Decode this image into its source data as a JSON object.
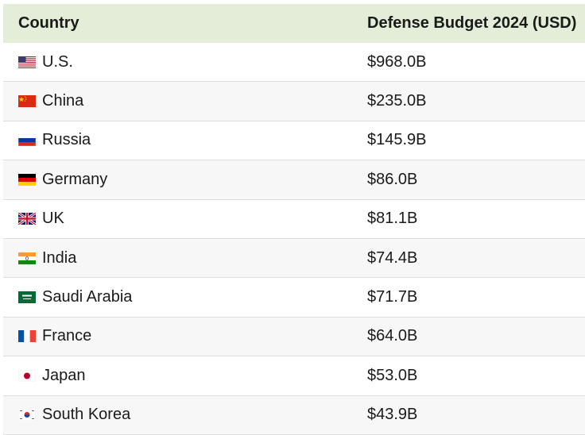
{
  "table": {
    "headers": {
      "country": "Country",
      "budget": "Defense Budget 2024 (USD)"
    },
    "rows": [
      {
        "country": "U.S.",
        "budget": "$968.0B",
        "flag_icon": "us-flag-icon"
      },
      {
        "country": "China",
        "budget": "$235.0B",
        "flag_icon": "china-flag-icon"
      },
      {
        "country": "Russia",
        "budget": "$145.9B",
        "flag_icon": "russia-flag-icon"
      },
      {
        "country": "Germany",
        "budget": "$86.0B",
        "flag_icon": "germany-flag-icon"
      },
      {
        "country": "UK",
        "budget": "$81.1B",
        "flag_icon": "uk-flag-icon"
      },
      {
        "country": "India",
        "budget": "$74.4B",
        "flag_icon": "india-flag-icon"
      },
      {
        "country": "Saudi Arabia",
        "budget": "$71.7B",
        "flag_icon": "saudi-arabia-flag-icon"
      },
      {
        "country": "France",
        "budget": "$64.0B",
        "flag_icon": "france-flag-icon"
      },
      {
        "country": "Japan",
        "budget": "$53.0B",
        "flag_icon": "japan-flag-icon"
      },
      {
        "country": "South Korea",
        "budget": "$43.9B",
        "flag_icon": "south-korea-flag-icon"
      }
    ]
  },
  "colors": {
    "header_bg": "#e3edd8",
    "alt_row_bg": "#f7f7f7",
    "row_border": "#dedede"
  }
}
